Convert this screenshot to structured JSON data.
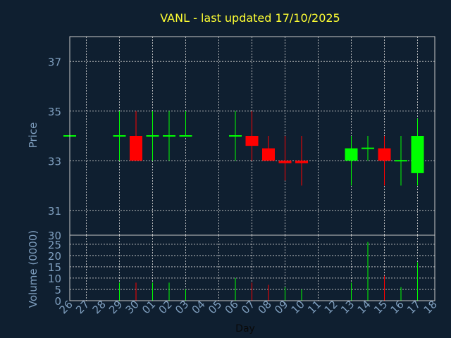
{
  "chart_data": [
    {
      "type": "candlestick",
      "title": "VANL - last updated 17/10/2025",
      "ylabel": "Price",
      "xlabel": "",
      "ylim": [
        30,
        38
      ],
      "yticks": [
        31,
        33,
        35,
        37
      ],
      "grid": true,
      "up_color": "#00ff00",
      "down_color": "#ff0000",
      "categories": [
        "26",
        "27",
        "28",
        "29",
        "30",
        "01",
        "02",
        "03",
        "04",
        "05",
        "06",
        "07",
        "08",
        "09",
        "10",
        "11",
        "12",
        "13",
        "14",
        "15",
        "16",
        "17",
        "18"
      ],
      "candles": [
        {
          "x": "26",
          "open": 34.0,
          "close": 34.0,
          "high": 34.0,
          "low": 34.0
        },
        {
          "x": "29",
          "open": 34.0,
          "close": 34.0,
          "high": 35.0,
          "low": 33.0
        },
        {
          "x": "30",
          "open": 34.0,
          "close": 33.0,
          "high": 35.0,
          "low": 33.0
        },
        {
          "x": "01",
          "open": 34.0,
          "close": 34.0,
          "high": 35.0,
          "low": 33.0
        },
        {
          "x": "02",
          "open": 34.0,
          "close": 34.0,
          "high": 35.0,
          "low": 33.0
        },
        {
          "x": "03",
          "open": 34.0,
          "close": 34.0,
          "high": 35.0,
          "low": 34.0
        },
        {
          "x": "06",
          "open": 34.0,
          "close": 34.0,
          "high": 35.0,
          "low": 33.0
        },
        {
          "x": "07",
          "open": 34.0,
          "close": 33.6,
          "high": 35.0,
          "low": 33.0
        },
        {
          "x": "08",
          "open": 33.5,
          "close": 33.0,
          "high": 34.0,
          "low": 33.0
        },
        {
          "x": "09",
          "open": 33.0,
          "close": 32.9,
          "high": 34.0,
          "low": 32.2
        },
        {
          "x": "10",
          "open": 33.0,
          "close": 32.9,
          "high": 34.0,
          "low": 32.0
        },
        {
          "x": "13",
          "open": 33.0,
          "close": 33.5,
          "high": 34.0,
          "low": 32.0
        },
        {
          "x": "14",
          "open": 33.5,
          "close": 33.5,
          "high": 34.0,
          "low": 33.0
        },
        {
          "x": "15",
          "open": 33.5,
          "close": 33.0,
          "high": 34.0,
          "low": 32.0
        },
        {
          "x": "16",
          "open": 33.0,
          "close": 33.0,
          "high": 34.0,
          "low": 32.0
        },
        {
          "x": "17",
          "open": 32.5,
          "close": 34.0,
          "high": 34.7,
          "low": 32.0
        }
      ]
    },
    {
      "type": "bar",
      "ylabel": "Volume (0000)",
      "xlabel": "Day",
      "ylim": [
        0,
        29
      ],
      "yticks": [
        0,
        5,
        10,
        15,
        20,
        25
      ],
      "grid": true,
      "categories": [
        "26",
        "27",
        "28",
        "29",
        "30",
        "01",
        "02",
        "03",
        "04",
        "05",
        "06",
        "07",
        "08",
        "09",
        "10",
        "11",
        "12",
        "13",
        "14",
        "15",
        "16",
        "17",
        "18"
      ],
      "bars": [
        {
          "x": "29",
          "value": 8,
          "direction": "up"
        },
        {
          "x": "30",
          "value": 8,
          "direction": "down"
        },
        {
          "x": "01",
          "value": 8,
          "direction": "up"
        },
        {
          "x": "02",
          "value": 8,
          "direction": "up"
        },
        {
          "x": "03",
          "value": 5,
          "direction": "up"
        },
        {
          "x": "06",
          "value": 10,
          "direction": "up"
        },
        {
          "x": "07",
          "value": 8,
          "direction": "down"
        },
        {
          "x": "08",
          "value": 7,
          "direction": "down"
        },
        {
          "x": "09",
          "value": 6,
          "direction": "up"
        },
        {
          "x": "10",
          "value": 5,
          "direction": "up"
        },
        {
          "x": "13",
          "value": 8,
          "direction": "up"
        },
        {
          "x": "14",
          "value": 26,
          "direction": "up"
        },
        {
          "x": "15",
          "value": 11,
          "direction": "down"
        },
        {
          "x": "16",
          "value": 6,
          "direction": "up"
        },
        {
          "x": "17",
          "value": 17,
          "direction": "up"
        }
      ]
    }
  ]
}
